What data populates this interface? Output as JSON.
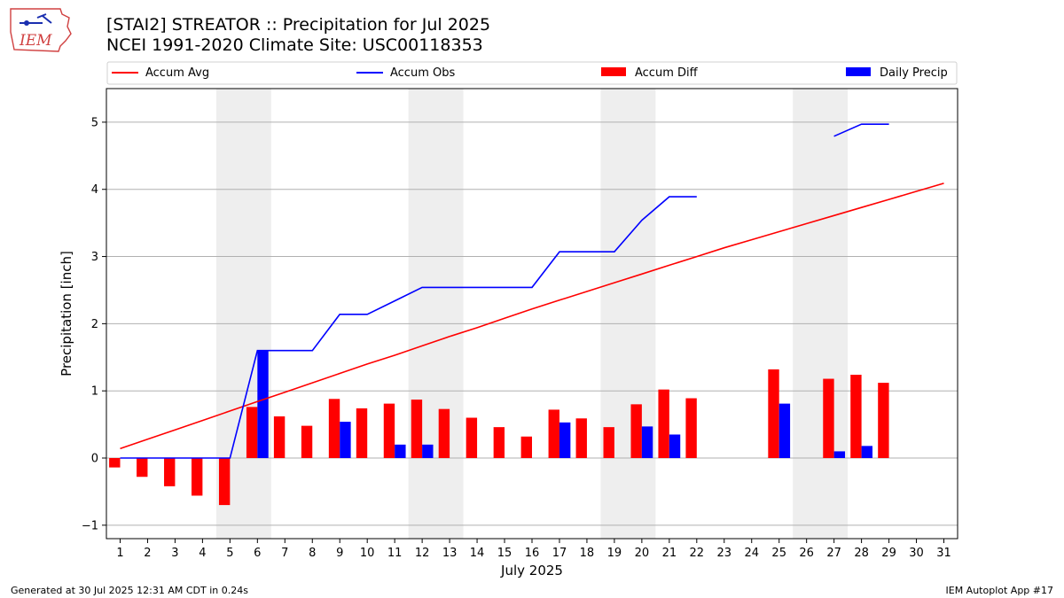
{
  "header": {
    "title_line1": "[STAI2] STREATOR :: Precipitation for Jul 2025",
    "title_line2": "NCEI 1991-2020 Climate Site: USC00118353",
    "logo_text": "IEM"
  },
  "footer": {
    "left": "Generated at 30 Jul 2025 12:31 AM CDT in 0.24s",
    "right": "IEM Autoplot App #17"
  },
  "colors": {
    "avg": "#ff0000",
    "obs": "#0000ff",
    "diff": "#ff0000",
    "daily": "#0000ff",
    "weekend": "#eeeeee",
    "grid": "#b0b0b0"
  },
  "chart_data": {
    "type": "bar",
    "xlabel": "July 2025",
    "ylabel": "Precipitation [inch]",
    "xlim": [
      0.5,
      31.5
    ],
    "ylim": [
      -1.2,
      5.5
    ],
    "yticks": [
      -1,
      0,
      1,
      2,
      3,
      4,
      5
    ],
    "days": [
      1,
      2,
      3,
      4,
      5,
      6,
      7,
      8,
      9,
      10,
      11,
      12,
      13,
      14,
      15,
      16,
      17,
      18,
      19,
      20,
      21,
      22,
      23,
      24,
      25,
      26,
      27,
      28,
      29,
      30,
      31
    ],
    "weekend_spans": [
      [
        4.5,
        6.5
      ],
      [
        11.5,
        13.5
      ],
      [
        18.5,
        20.5
      ],
      [
        25.5,
        27.5
      ]
    ],
    "legend": [
      "Accum Avg",
      "Accum Obs",
      "Accum Diff",
      "Daily Precip"
    ],
    "legend_placement": "top",
    "series": [
      {
        "name": "Accum Avg",
        "kind": "line",
        "values": [
          0.14,
          0.28,
          0.42,
          0.56,
          0.7,
          0.84,
          0.98,
          1.12,
          1.26,
          1.4,
          1.53,
          1.67,
          1.81,
          1.94,
          2.08,
          2.22,
          2.35,
          2.48,
          2.61,
          2.74,
          2.87,
          3.0,
          3.13,
          3.25,
          3.37,
          3.49,
          3.61,
          3.73,
          3.85,
          3.97,
          4.09
        ]
      },
      {
        "name": "Accum Obs",
        "kind": "line",
        "values": [
          0,
          0,
          0,
          0,
          0,
          1.6,
          1.6,
          1.6,
          2.14,
          2.14,
          2.34,
          2.54,
          2.54,
          2.54,
          2.54,
          2.54,
          3.07,
          3.07,
          3.07,
          3.54,
          3.89,
          3.89,
          null,
          null,
          null,
          null,
          4.79,
          4.97,
          4.97,
          null,
          null
        ]
      },
      {
        "name": "Accum Diff",
        "kind": "bar",
        "values": [
          -0.14,
          -0.28,
          -0.42,
          -0.56,
          -0.7,
          0.76,
          0.62,
          0.48,
          0.88,
          0.74,
          0.81,
          0.87,
          0.73,
          0.6,
          0.46,
          0.32,
          0.72,
          0.59,
          0.46,
          0.8,
          1.02,
          0.89,
          null,
          null,
          1.32,
          null,
          1.18,
          1.24,
          1.12,
          null,
          null
        ]
      },
      {
        "name": "Daily Precip",
        "kind": "bar",
        "values": [
          0,
          0,
          0,
          0,
          0,
          1.6,
          0,
          0,
          0.54,
          0,
          0.2,
          0.2,
          0,
          0,
          0,
          0,
          0.53,
          0,
          0,
          0.47,
          0.35,
          0,
          null,
          null,
          0.81,
          null,
          0.1,
          0.18,
          0,
          null,
          null
        ]
      }
    ]
  }
}
